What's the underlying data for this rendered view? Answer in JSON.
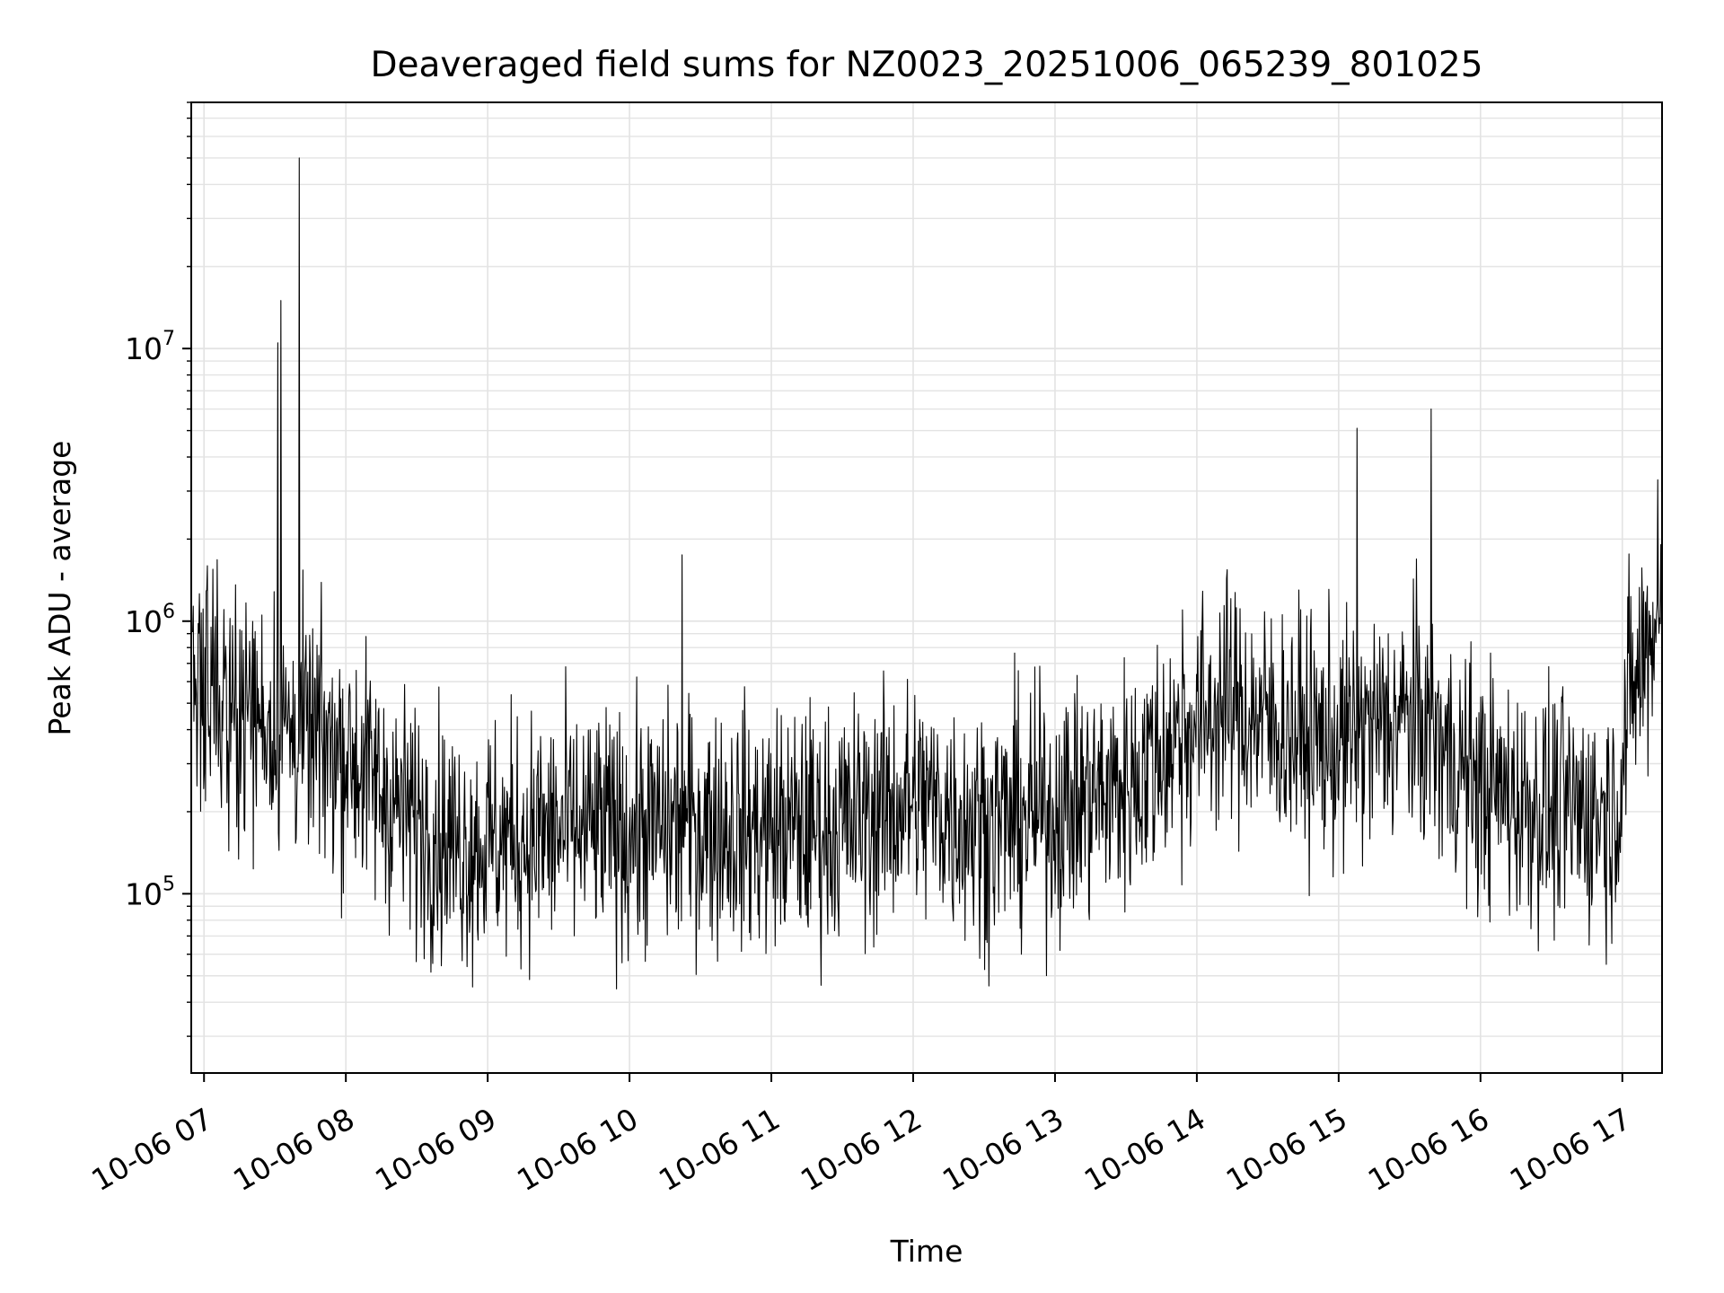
{
  "chart_data": {
    "type": "line",
    "title": "Deaveraged field sums for NZ0023_20251006_065239_801025",
    "xlabel": "Time",
    "ylabel": "Peak ADU - average",
    "yscale": "log",
    "xlim_hours": [
      6.91,
      17.28
    ],
    "ylim": [
      22000,
      80000000
    ],
    "x_ticks": [
      {
        "hour": 7,
        "label": "10-06 07"
      },
      {
        "hour": 8,
        "label": "10-06 08"
      },
      {
        "hour": 9,
        "label": "10-06 09"
      },
      {
        "hour": 10,
        "label": "10-06 10"
      },
      {
        "hour": 11,
        "label": "10-06 11"
      },
      {
        "hour": 12,
        "label": "10-06 12"
      },
      {
        "hour": 13,
        "label": "10-06 13"
      },
      {
        "hour": 14,
        "label": "10-06 14"
      },
      {
        "hour": 15,
        "label": "10-06 15"
      },
      {
        "hour": 16,
        "label": "10-06 16"
      },
      {
        "hour": 17,
        "label": "10-06 17"
      }
    ],
    "y_ticks": [
      {
        "value": 100000,
        "base": "10",
        "exp": "5"
      },
      {
        "value": 1000000,
        "base": "10",
        "exp": "6"
      },
      {
        "value": 10000000,
        "base": "10",
        "exp": "7"
      }
    ],
    "grid": true,
    "line_color": "#000000",
    "envelope": [
      {
        "hour": 6.92,
        "median": 600000
      },
      {
        "hour": 7.2,
        "median": 500000
      },
      {
        "hour": 7.6,
        "median": 400000
      },
      {
        "hour": 8.0,
        "median": 330000
      },
      {
        "hour": 8.4,
        "median": 200000
      },
      {
        "hour": 8.8,
        "median": 150000
      },
      {
        "hour": 9.2,
        "median": 160000
      },
      {
        "hour": 9.6,
        "median": 170000
      },
      {
        "hour": 10.0,
        "median": 170000
      },
      {
        "hour": 10.5,
        "median": 180000
      },
      {
        "hour": 11.0,
        "median": 170000
      },
      {
        "hour": 11.5,
        "median": 180000
      },
      {
        "hour": 12.0,
        "median": 220000
      },
      {
        "hour": 12.5,
        "median": 180000
      },
      {
        "hour": 13.0,
        "median": 200000
      },
      {
        "hour": 13.5,
        "median": 250000
      },
      {
        "hour": 13.8,
        "median": 350000
      },
      {
        "hour": 14.2,
        "median": 500000
      },
      {
        "hour": 14.6,
        "median": 400000
      },
      {
        "hour": 15.0,
        "median": 350000
      },
      {
        "hour": 15.5,
        "median": 450000
      },
      {
        "hour": 16.0,
        "median": 250000
      },
      {
        "hour": 16.5,
        "median": 200000
      },
      {
        "hour": 16.95,
        "median": 200000
      },
      {
        "hour": 17.05,
        "median": 500000
      },
      {
        "hour": 17.28,
        "median": 1200000
      }
    ],
    "peaks": [
      {
        "hour": 7.52,
        "value": 10500000
      },
      {
        "hour": 7.54,
        "value": 15000000
      },
      {
        "hour": 7.67,
        "value": 50000000
      },
      {
        "hour": 15.13,
        "value": 5100000
      },
      {
        "hour": 15.65,
        "value": 6000000
      },
      {
        "hour": 10.37,
        "value": 1750000
      },
      {
        "hour": 13.9,
        "value": 1100000
      },
      {
        "hour": 17.25,
        "value": 3300000
      }
    ]
  }
}
